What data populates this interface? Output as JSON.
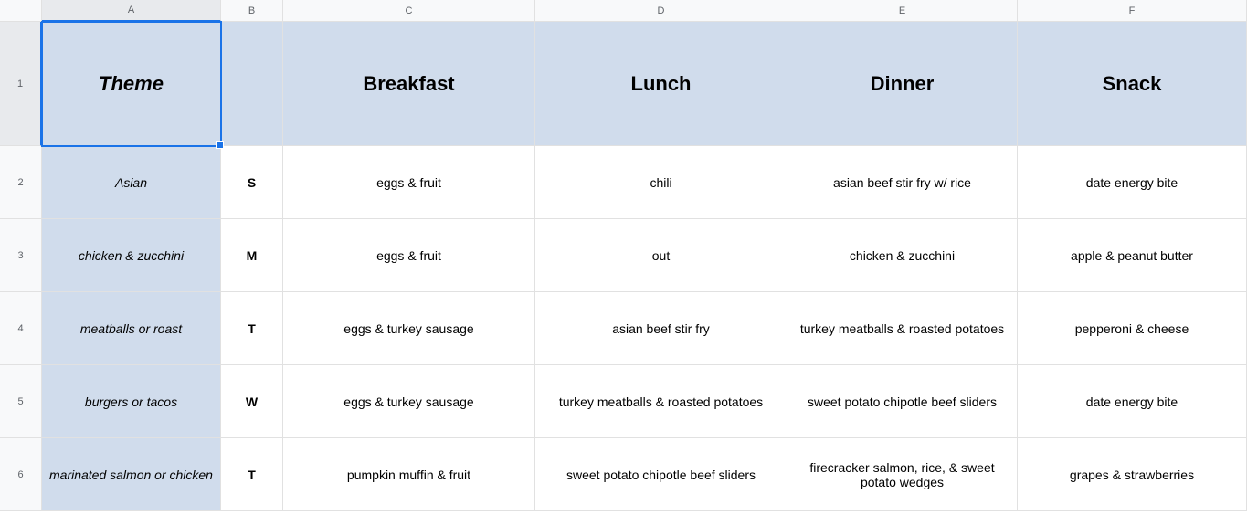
{
  "columns": [
    "A",
    "B",
    "C",
    "D",
    "E",
    "F"
  ],
  "row_numbers": [
    "1",
    "2",
    "3",
    "4",
    "5",
    "6"
  ],
  "header": {
    "theme": "Theme",
    "day": "",
    "breakfast": "Breakfast",
    "lunch": "Lunch",
    "dinner": "Dinner",
    "snack": "Snack"
  },
  "rows": [
    {
      "theme": "Asian",
      "day": "S",
      "breakfast": "eggs & fruit",
      "lunch": "chili",
      "dinner": "asian beef stir fry w/ rice",
      "snack": "date energy bite"
    },
    {
      "theme": "chicken & zucchini",
      "day": "M",
      "breakfast": "eggs & fruit",
      "lunch": "out",
      "dinner": "chicken & zucchini",
      "snack": "apple & peanut butter"
    },
    {
      "theme": "meatballs or roast",
      "day": "T",
      "breakfast": "eggs & turkey sausage",
      "lunch": "asian beef stir fry",
      "dinner": "turkey meatballs & roasted potatoes",
      "snack": "pepperoni & cheese"
    },
    {
      "theme": "burgers or tacos",
      "day": "W",
      "breakfast": "eggs & turkey sausage",
      "lunch": "turkey meatballs & roasted potatoes",
      "dinner": "sweet potato chipotle beef sliders",
      "snack": "date energy bite"
    },
    {
      "theme": "marinated salmon or chicken",
      "day": "T",
      "breakfast": "pumpkin muffin & fruit",
      "lunch": "sweet potato chipotle beef sliders",
      "dinner": "firecracker salmon, rice, & sweet potato wedges",
      "snack": "grapes & strawberries"
    }
  ],
  "colors": {
    "header_bg": "#d0dcec",
    "theme_bg": "#d0dcec",
    "cell_bg": "#ffffff",
    "border": "#e1e1e1",
    "rowcol_bg": "#f8f9fa",
    "selection": "#1a73e8"
  }
}
